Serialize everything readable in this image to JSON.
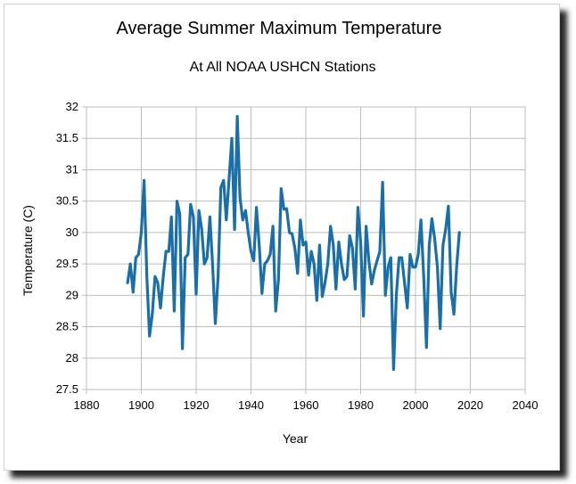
{
  "chart_data": {
    "type": "line",
    "title": "Average Summer Maximum Temperature",
    "subtitle": "At All NOAA USHCN Stations",
    "xlabel": "Year",
    "ylabel": "Temperature (C)",
    "xlim": [
      1880,
      2040
    ],
    "ylim": [
      27.5,
      32
    ],
    "xticks": [
      1880,
      1900,
      1920,
      1940,
      1960,
      1980,
      2000,
      2020,
      2040
    ],
    "yticks": [
      27.5,
      28,
      28.5,
      29,
      29.5,
      30,
      30.5,
      31,
      31.5,
      32
    ],
    "grid": true,
    "line_color": "#1a6fa8",
    "series": [
      {
        "name": "Average Summer Maximum Temperature",
        "x": [
          1895,
          1896,
          1897,
          1898,
          1899,
          1900,
          1901,
          1902,
          1903,
          1904,
          1905,
          1906,
          1907,
          1908,
          1909,
          1910,
          1911,
          1912,
          1913,
          1914,
          1915,
          1916,
          1917,
          1918,
          1919,
          1920,
          1921,
          1922,
          1923,
          1924,
          1925,
          1926,
          1927,
          1928,
          1929,
          1930,
          1931,
          1932,
          1933,
          1934,
          1935,
          1936,
          1937,
          1938,
          1939,
          1940,
          1941,
          1942,
          1943,
          1944,
          1945,
          1946,
          1947,
          1948,
          1949,
          1950,
          1951,
          1952,
          1953,
          1954,
          1955,
          1956,
          1957,
          1958,
          1959,
          1960,
          1961,
          1962,
          1963,
          1964,
          1965,
          1966,
          1967,
          1968,
          1969,
          1970,
          1971,
          1972,
          1973,
          1974,
          1975,
          1976,
          1977,
          1978,
          1979,
          1980,
          1981,
          1982,
          1983,
          1984,
          1985,
          1986,
          1987,
          1988,
          1989,
          1990,
          1991,
          1992,
          1993,
          1994,
          1995,
          1996,
          1997,
          1998,
          1999,
          2000,
          2001,
          2002,
          2003,
          2004,
          2005,
          2006,
          2007,
          2008,
          2009,
          2010,
          2011,
          2012,
          2013,
          2014,
          2015,
          2016
        ],
        "values": [
          29.2,
          29.5,
          29.05,
          29.6,
          29.65,
          30.0,
          30.83,
          29.3,
          28.35,
          28.7,
          29.3,
          29.2,
          28.8,
          29.3,
          29.7,
          29.7,
          30.25,
          28.75,
          30.5,
          30.3,
          28.15,
          29.6,
          29.65,
          30.45,
          30.25,
          29.02,
          30.35,
          30.05,
          29.5,
          29.6,
          30.25,
          29.5,
          28.55,
          29.3,
          30.72,
          30.83,
          30.2,
          30.85,
          31.5,
          30.05,
          31.85,
          30.55,
          30.2,
          30.35,
          30.0,
          29.7,
          29.55,
          30.4,
          29.8,
          29.03,
          29.5,
          29.55,
          29.65,
          30.1,
          28.75,
          29.25,
          30.7,
          30.37,
          30.38,
          30.0,
          29.98,
          29.75,
          29.35,
          30.2,
          29.8,
          29.85,
          29.32,
          29.7,
          29.5,
          28.92,
          29.8,
          28.98,
          29.2,
          29.5,
          30.1,
          29.8,
          29.1,
          29.85,
          29.5,
          29.25,
          29.3,
          29.95,
          29.75,
          29.1,
          30.4,
          29.85,
          28.67,
          30.1,
          29.55,
          29.18,
          29.4,
          29.55,
          29.7,
          30.8,
          29.0,
          29.45,
          29.6,
          27.82,
          29.0,
          29.6,
          29.6,
          29.2,
          28.8,
          29.65,
          29.45,
          29.45,
          29.65,
          30.2,
          29.3,
          28.17,
          29.8,
          30.22,
          29.9,
          29.45,
          28.47,
          29.8,
          30.05,
          30.42,
          29.05,
          28.7,
          29.45,
          30.0
        ]
      }
    ]
  }
}
